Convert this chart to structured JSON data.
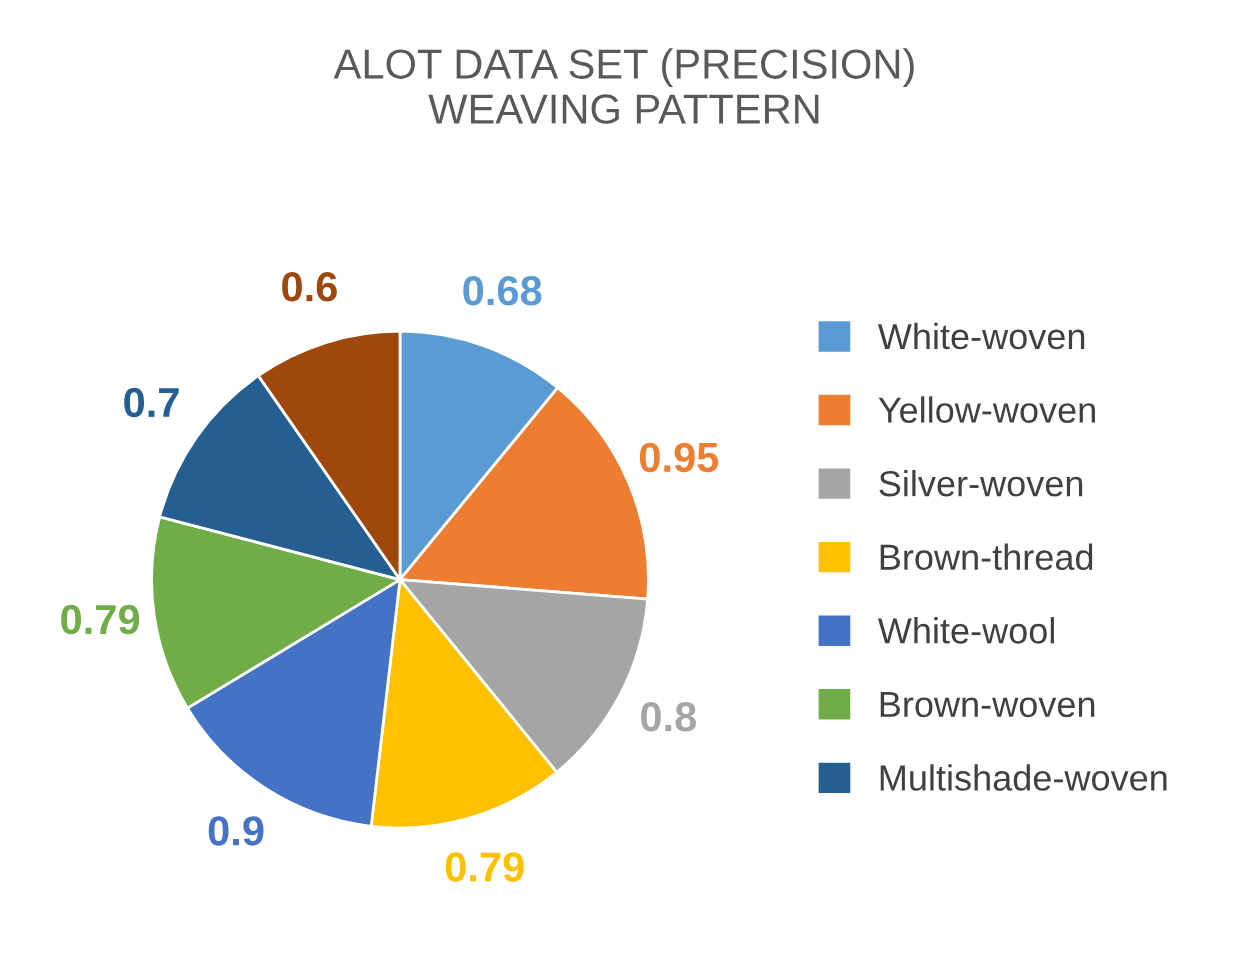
{
  "chart_data": {
    "type": "pie",
    "title": "ALOT DATA SET (PRECISION)\nWEAVING PATTERN",
    "categories": [
      "White-woven",
      "Yellow-woven",
      "Silver-woven",
      "Brown-thread",
      "White-wool",
      "Brown-woven",
      "Multishade-woven",
      null
    ],
    "values": [
      0.68,
      0.95,
      0.8,
      0.79,
      0.9,
      0.79,
      0.7,
      0.6
    ],
    "colors": [
      "#5b9bd5",
      "#ed7d31",
      "#a5a5a5",
      "#ffc000",
      "#4472c4",
      "#70ad47",
      "#255e91",
      "#9e480e"
    ],
    "data_labels": true,
    "legend": "right"
  }
}
